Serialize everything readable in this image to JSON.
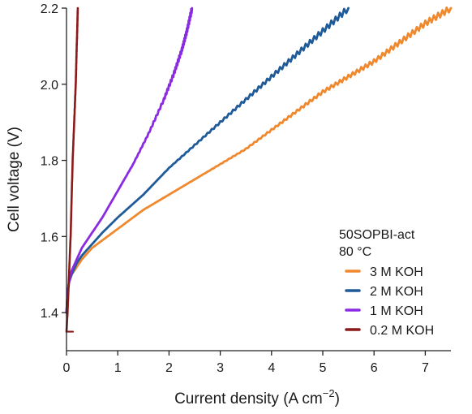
{
  "chart_data": {
    "type": "line",
    "title": "",
    "xlabel_main": "Current density (A cm",
    "xlabel_sup": "−2",
    "xlabel_end": ")",
    "ylabel": "Cell voltage (V)",
    "xlim": [
      0,
      7.5
    ],
    "ylim": [
      1.3,
      2.2
    ],
    "x_ticks": [
      0,
      1,
      2,
      3,
      4,
      5,
      6,
      7
    ],
    "y_ticks": [
      1.4,
      1.6,
      1.8,
      2.0,
      2.2
    ],
    "y_tick_labels": [
      "1.4",
      "1.6",
      "1.8",
      "2.0",
      "2.2"
    ],
    "grid": false,
    "legend_position": "bottom-right",
    "legend_heading": [
      "50SOPBI-act",
      "80 °C"
    ],
    "series": [
      {
        "name": "3 M KOH",
        "color": "#f0892e",
        "x": [
          0,
          0.02,
          0.05,
          0.1,
          0.2,
          0.3,
          0.5,
          0.7,
          1.0,
          1.5,
          2.0,
          2.5,
          3.0,
          3.5,
          4.0,
          4.5,
          5.0,
          5.5,
          6.0,
          6.5,
          7.0,
          7.5
        ],
        "y": [
          1.4,
          1.45,
          1.48,
          1.5,
          1.52,
          1.54,
          1.57,
          1.59,
          1.62,
          1.67,
          1.71,
          1.75,
          1.79,
          1.83,
          1.88,
          1.93,
          1.98,
          2.02,
          2.06,
          2.11,
          2.16,
          2.2
        ]
      },
      {
        "name": "2 M KOH",
        "color": "#1f5a99",
        "x": [
          0,
          0.02,
          0.05,
          0.1,
          0.2,
          0.3,
          0.5,
          0.7,
          1.0,
          1.5,
          2.0,
          2.5,
          3.0,
          3.5,
          4.0,
          4.5,
          5.0,
          5.5
        ],
        "y": [
          1.4,
          1.45,
          1.48,
          1.5,
          1.53,
          1.55,
          1.58,
          1.61,
          1.65,
          1.71,
          1.78,
          1.84,
          1.9,
          1.96,
          2.02,
          2.08,
          2.14,
          2.2
        ]
      },
      {
        "name": "1 M KOH",
        "color": "#8a2be2",
        "x": [
          0,
          0.02,
          0.05,
          0.1,
          0.2,
          0.3,
          0.5,
          0.7,
          1.0,
          1.3,
          1.6,
          1.9,
          2.1,
          2.25,
          2.35,
          2.45
        ],
        "y": [
          1.4,
          1.45,
          1.48,
          1.51,
          1.54,
          1.57,
          1.61,
          1.65,
          1.72,
          1.79,
          1.87,
          1.96,
          2.03,
          2.09,
          2.14,
          2.2
        ]
      },
      {
        "name": "0.2 M KOH",
        "color": "#8b1a1a",
        "x": [
          0,
          0.02,
          0.05,
          0.08,
          0.1,
          0.12,
          0.15,
          0.18,
          0.2,
          0.22
        ],
        "y": [
          1.35,
          1.4,
          1.5,
          1.6,
          1.7,
          1.8,
          1.9,
          2.0,
          2.1,
          2.2
        ]
      }
    ]
  }
}
